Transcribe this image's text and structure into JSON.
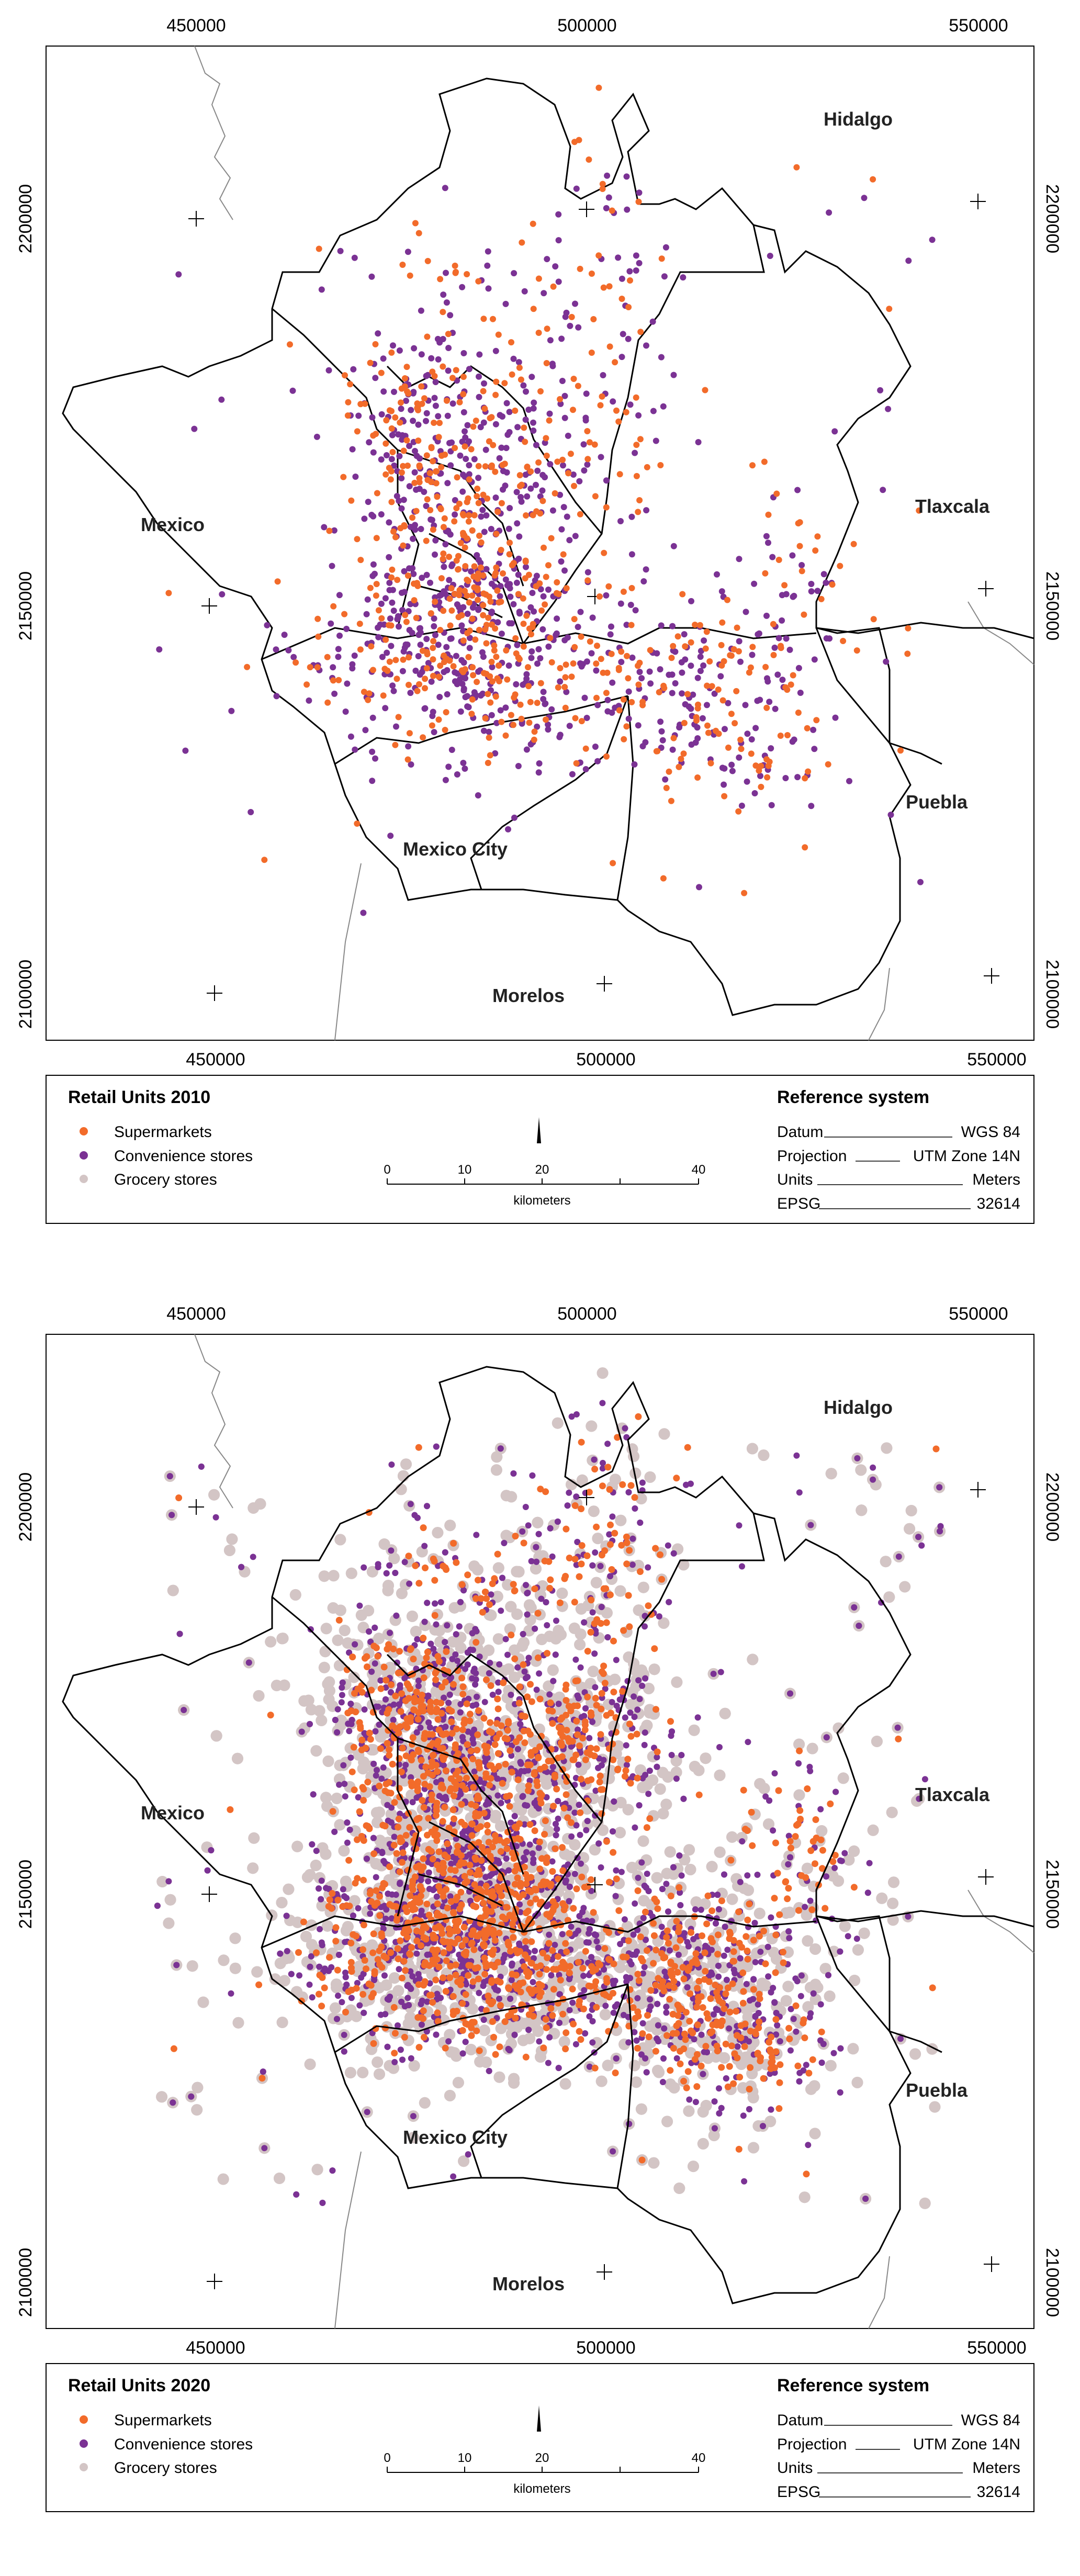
{
  "panels": [
    {
      "legend": {
        "title": "Retail Units 2010",
        "items": [
          {
            "label": "Supermarkets",
            "color": "#f26b2a"
          },
          {
            "label": "Convenience stores",
            "color": "#7b3294"
          },
          {
            "label": "Grocery stores",
            "color": "#d3c5c5"
          }
        ]
      },
      "reference": {
        "title": "Reference system",
        "rows": [
          {
            "key": "Datum",
            "value": "WGS 84"
          },
          {
            "key": "Projection",
            "value": "UTM Zone 14N"
          },
          {
            "key": "Units",
            "value": "Meters"
          },
          {
            "key": "EPSG",
            "value": "32614"
          }
        ]
      },
      "scalebar": {
        "ticks": [
          "0",
          "10",
          "20",
          "40"
        ],
        "unit": "kilometers"
      },
      "x_ticks": [
        "450000",
        "500000",
        "550000"
      ],
      "y_ticks": [
        "2200000",
        "2150000",
        "2100000"
      ],
      "region_labels": [
        "Hidalgo",
        "Mexico",
        "Tlaxcala",
        "Puebla",
        "Mexico City",
        "Morelos"
      ]
    },
    {
      "legend": {
        "title": "Retail Units 2020",
        "items": [
          {
            "label": "Supermarkets",
            "color": "#f26b2a"
          },
          {
            "label": "Convenience stores",
            "color": "#7b3294"
          },
          {
            "label": "Grocery stores",
            "color": "#d3c5c5"
          }
        ]
      },
      "reference": {
        "title": "Reference system",
        "rows": [
          {
            "key": "Datum",
            "value": "WGS 84"
          },
          {
            "key": "Projection",
            "value": "UTM Zone 14N"
          },
          {
            "key": "Units",
            "value": "Meters"
          },
          {
            "key": "EPSG",
            "value": "32614"
          }
        ]
      },
      "scalebar": {
        "ticks": [
          "0",
          "10",
          "20",
          "40"
        ],
        "unit": "kilometers"
      },
      "x_ticks": [
        "450000",
        "500000",
        "550000"
      ],
      "y_ticks": [
        "2200000",
        "2150000",
        "2100000"
      ],
      "region_labels": [
        "Hidalgo",
        "Mexico",
        "Tlaxcala",
        "Puebla",
        "Mexico City",
        "Morelos"
      ]
    }
  ]
}
